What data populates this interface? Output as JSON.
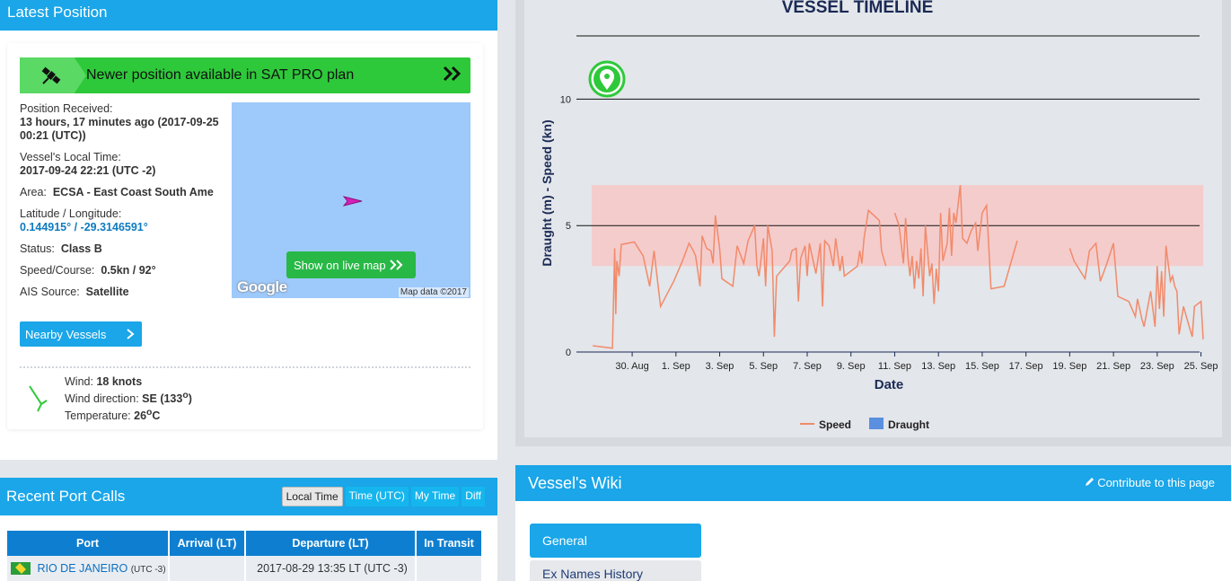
{
  "latest_position": {
    "header": "Latest Position",
    "sat_banner": "Newer position available in SAT PRO plan",
    "position_received_label": "Position Received:",
    "position_received_value": "13 hours, 17 minutes ago (2017-09-25 00:21 (UTC))",
    "local_time_label": "Vessel's Local Time:",
    "local_time_value": "2017-09-24 22:21 (UTC -2)",
    "area_label": "Area:",
    "area_value": "ECSA - East Coast South Ame",
    "latlon_label": "Latitude / Longitude:",
    "latlon_value": "0.144915° / -29.3146591°",
    "status_label": "Status:",
    "status_value": "Class B",
    "speed_label": "Speed/Course:",
    "speed_value": "0.5kn / 92°",
    "ais_label": "AIS Source:",
    "ais_value": "Satellite",
    "nearby_button": "Nearby Vessels",
    "map": {
      "live_button": "Show on live map",
      "google": "Google",
      "credit": "Map data ©2017"
    },
    "weather": {
      "wind_label": "Wind:",
      "wind_value": "18",
      "wind_unit": "knots",
      "direction_label": "Wind direction:",
      "direction_value": "SE (133",
      "direction_deg": "o",
      "direction_close": ")",
      "temp_label": "Temperature:",
      "temp_value": "26",
      "temp_deg": "o",
      "temp_unit": "C"
    }
  },
  "recent_port_calls": {
    "header": "Recent Port Calls",
    "time_buttons": [
      "Local Time",
      "Time (UTC)",
      "My Time",
      "Diff"
    ],
    "columns": [
      "Port",
      "Arrival (LT)",
      "Departure (LT)",
      "In Transit"
    ],
    "rows": [
      {
        "port": "RIO DE JANEIRO",
        "tz": "(UTC -3)",
        "arrival": "",
        "departure": "2017-08-29 13:35 LT (UTC -3)",
        "transit": ""
      }
    ]
  },
  "vessel_timeline": {
    "title": "VESSEL TIMELINE",
    "legend": [
      "Speed",
      "Draught"
    ]
  },
  "chart_data": {
    "type": "line",
    "title": "VESSEL TIMELINE",
    "xlabel": "Date",
    "ylabel": "Draught (m) - Speed (kn)",
    "ylim": [
      0,
      12.5
    ],
    "yticks": [
      0,
      5,
      10
    ],
    "xticks": [
      "30. Aug",
      "1. Sep",
      "3. Sep",
      "5. Sep",
      "7. Sep",
      "9. Sep",
      "11. Sep",
      "13. Sep",
      "15. Sep",
      "17. Sep",
      "19. Sep",
      "21. Sep",
      "23. Sep",
      "25. Sep"
    ],
    "x_range_days": [
      28.15,
      56.1
    ],
    "band": {
      "from": 3.4,
      "to": 6.6,
      "color": "#f4cccc"
    },
    "series": [
      {
        "name": "Speed",
        "color": "#f28a6a",
        "segments": [
          [
            [
              28.2,
              0.25
            ],
            [
              29.1,
              0.15
            ],
            [
              29.2,
              4.1
            ],
            [
              29.25,
              1.5
            ],
            [
              29.3,
              3.6
            ],
            [
              29.4,
              3.0
            ],
            [
              29.5,
              4.25
            ],
            [
              30.1,
              4.35
            ],
            [
              30.5,
              3.8
            ],
            [
              30.8,
              2.6
            ],
            [
              31.0,
              4.0
            ],
            [
              31.3,
              1.8
            ],
            [
              31.9,
              2.8
            ],
            [
              32.3,
              3.6
            ],
            [
              32.6,
              4.3
            ],
            [
              32.8,
              4.0
            ],
            [
              32.9,
              3.8
            ],
            [
              33.1,
              2.6
            ],
            [
              33.2,
              4.6
            ],
            [
              33.4,
              4.1
            ],
            [
              33.6,
              4.0
            ],
            [
              33.7,
              3.5
            ],
            [
              33.8,
              5.4
            ],
            [
              34.0,
              4.1
            ],
            [
              34.1,
              2.9
            ],
            [
              34.6,
              2.6
            ],
            [
              34.8,
              4.2
            ],
            [
              35.1,
              3.5
            ],
            [
              35.3,
              4.4
            ],
            [
              35.6,
              5.0
            ],
            [
              35.7,
              3.4
            ],
            [
              35.8,
              3.0
            ],
            [
              36.0,
              4.5
            ],
            [
              36.1,
              2.6
            ],
            [
              36.2,
              5.0
            ],
            [
              36.4,
              4.0
            ],
            [
              36.5,
              0.6
            ],
            [
              36.6,
              3.0
            ],
            [
              37.2,
              3.6
            ],
            [
              37.3,
              4.0
            ],
            [
              37.5,
              4.1
            ],
            [
              37.6,
              2.0
            ],
            [
              37.7,
              3.7
            ],
            [
              37.9,
              4.2
            ],
            [
              38.0,
              3.0
            ],
            [
              38.1,
              4.3
            ],
            [
              38.4,
              3.1
            ],
            [
              38.6,
              4.3
            ],
            [
              38.7,
              1.8
            ],
            [
              38.8,
              4.4
            ],
            [
              39.0,
              4.2
            ],
            [
              39.2,
              3.4
            ],
            [
              39.3,
              4.5
            ],
            [
              39.5,
              3.2
            ],
            [
              39.6,
              3.8
            ],
            [
              39.7,
              3.0
            ],
            [
              40.3,
              3.4
            ],
            [
              40.4,
              4.0
            ],
            [
              40.5,
              3.5
            ],
            [
              40.6,
              4.5
            ],
            [
              40.8,
              5.6
            ],
            [
              41.3,
              5.2
            ],
            [
              41.4,
              4.0
            ],
            [
              41.6,
              3.4
            ]
          ],
          [
            [
              42.0,
              5.5
            ],
            [
              42.2,
              5.0
            ],
            [
              42.4,
              3.5
            ],
            [
              42.5,
              5.3
            ],
            [
              42.6,
              3.8
            ],
            [
              42.7,
              3.0
            ],
            [
              42.8,
              3.8
            ],
            [
              42.9,
              2.5
            ],
            [
              43.0,
              3.6
            ],
            [
              43.1,
              2.9
            ],
            [
              43.2,
              4.1
            ],
            [
              43.3,
              2.2
            ],
            [
              43.4,
              5.0
            ],
            [
              43.6,
              3.0
            ],
            [
              43.7,
              3.5
            ],
            [
              43.8,
              1.9
            ],
            [
              43.9,
              3.3
            ],
            [
              44.0,
              2.4
            ],
            [
              44.1,
              5.5
            ],
            [
              44.2,
              3.6
            ],
            [
              44.4,
              4.3
            ],
            [
              44.5,
              5.7
            ],
            [
              44.6,
              3.8
            ],
            [
              44.7,
              5.5
            ],
            [
              44.8,
              5.1
            ],
            [
              45.0,
              6.6
            ],
            [
              45.1,
              4.5
            ],
            [
              45.3,
              4.3
            ],
            [
              45.5,
              4.8
            ],
            [
              45.7,
              5.1
            ],
            [
              45.8,
              4.0
            ],
            [
              46.0,
              5.5
            ],
            [
              46.2,
              5.8
            ],
            [
              46.4,
              2.5
            ],
            [
              47.0,
              2.6
            ],
            [
              47.6,
              4.4
            ]
          ],
          [
            [
              50.0,
              4.1
            ],
            [
              50.2,
              3.6
            ],
            [
              50.7,
              2.9
            ],
            [
              50.9,
              4.0
            ],
            [
              51.2,
              4.3
            ],
            [
              51.4,
              2.8
            ],
            [
              51.7,
              3.5
            ],
            [
              52.0,
              4.3
            ],
            [
              52.2,
              2.2
            ],
            [
              52.7,
              2.0
            ],
            [
              53.0,
              1.4
            ],
            [
              53.1,
              2.1
            ],
            [
              53.3,
              1.3
            ],
            [
              53.4,
              1.0
            ],
            [
              53.7,
              2.4
            ],
            [
              53.9,
              1.0
            ],
            [
              54.0,
              3.4
            ],
            [
              54.1,
              1.7
            ],
            [
              54.2,
              3.2
            ],
            [
              54.3,
              1.4
            ],
            [
              54.4,
              4.2
            ],
            [
              54.6,
              2.8
            ],
            [
              54.7,
              3.0
            ],
            [
              54.8,
              2.6
            ],
            [
              54.9,
              2.4
            ],
            [
              55.0,
              0.7
            ],
            [
              55.2,
              1.8
            ],
            [
              55.4,
              1.2
            ],
            [
              55.6,
              0.6
            ],
            [
              55.7,
              1.8
            ],
            [
              56.0,
              2.0
            ],
            [
              56.1,
              0.5
            ]
          ]
        ]
      },
      {
        "name": "Draught",
        "color": "#5b8fe0",
        "values": []
      }
    ]
  },
  "vessel_wiki": {
    "header": "Vessel's Wiki",
    "contribute": "Contribute to this page",
    "tabs": [
      "General",
      "Ex Names History"
    ]
  }
}
